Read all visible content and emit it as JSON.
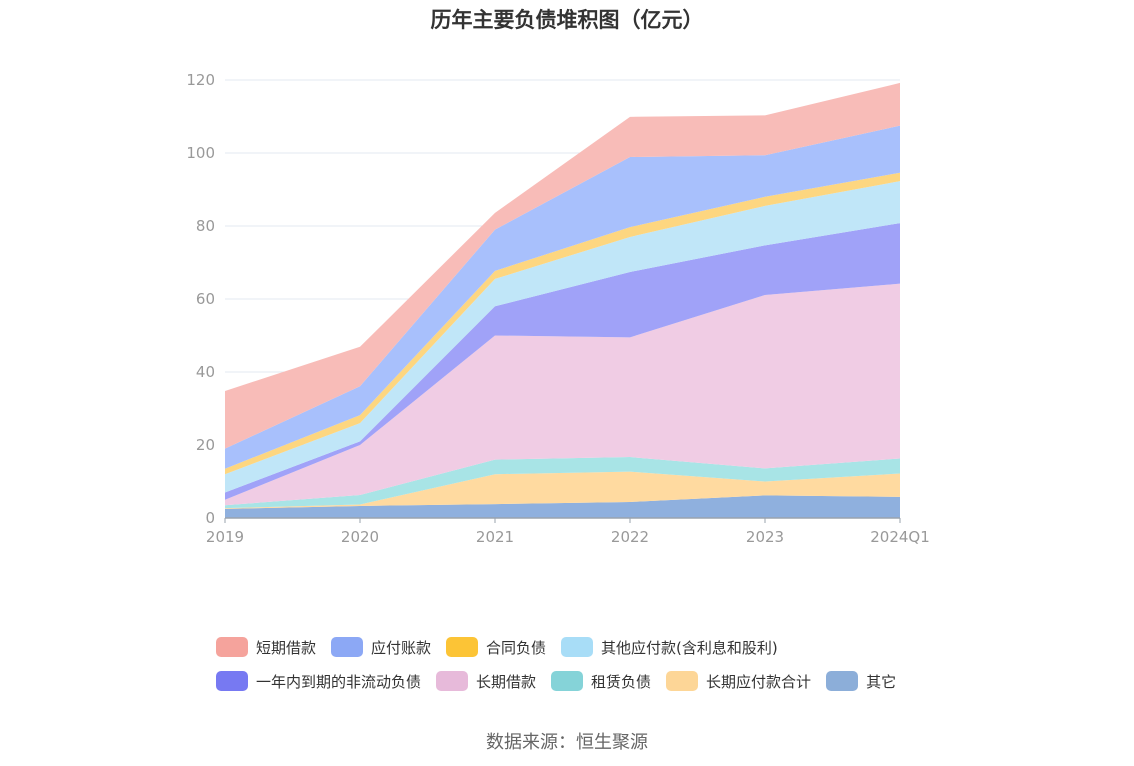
{
  "chart_data": {
    "type": "area",
    "stacked": true,
    "title": "历年主要负债堆积图（亿元）",
    "xlabel": "",
    "ylabel": "",
    "ylim": [
      0,
      120
    ],
    "yticks": [
      0,
      20,
      40,
      60,
      80,
      100,
      120
    ],
    "grid": true,
    "legend_position": "bottom",
    "categories": [
      "2019",
      "2020",
      "2021",
      "2022",
      "2023",
      "2024Q1"
    ],
    "series": [
      {
        "name": "其它",
        "color": "#8FB0DE",
        "values": [
          2.5,
          3.3,
          3.8,
          4.4,
          6.2,
          5.8
        ]
      },
      {
        "name": "长期应付款合计",
        "color": "#FFDAA0",
        "values": [
          0.2,
          0.4,
          8.2,
          8.3,
          3.8,
          6.4
        ]
      },
      {
        "name": "租赁负债",
        "color": "#A8E4E6",
        "values": [
          0.8,
          2.6,
          4.0,
          4.0,
          3.6,
          4.1
        ]
      },
      {
        "name": "长期借款",
        "color": "#F0CCE4",
        "values": [
          1.5,
          13.7,
          34.0,
          32.8,
          47.5,
          47.9
        ]
      },
      {
        "name": "一年内到期的非流动负债",
        "color": "#A0A2F8",
        "values": [
          2.0,
          1.0,
          8.0,
          17.9,
          13.6,
          16.6
        ]
      },
      {
        "name": "其他应付款(含利息和股利)",
        "color": "#C0E6F8",
        "values": [
          5.0,
          5.0,
          7.5,
          9.6,
          10.8,
          11.5
        ]
      },
      {
        "name": "合同负债",
        "color": "#FDD680",
        "values": [
          1.5,
          2.2,
          2.2,
          2.7,
          2.5,
          2.3
        ]
      },
      {
        "name": "应付账款",
        "color": "#A8C0FC",
        "values": [
          5.5,
          7.9,
          11.3,
          19.2,
          11.4,
          12.9
        ]
      },
      {
        "name": "短期借款",
        "color": "#F8BCB8",
        "values": [
          15.8,
          10.8,
          4.6,
          11.0,
          10.9,
          11.7
        ]
      }
    ]
  },
  "legend": {
    "rows": [
      [
        {
          "label": "短期借款",
          "color": "#F5A39C"
        },
        {
          "label": "应付账款",
          "color": "#8CA8F5"
        },
        {
          "label": "合同负债",
          "color": "#FCC436"
        },
        {
          "label": "其他应付款(含利息和股利)",
          "color": "#A8DDF7"
        }
      ],
      [
        {
          "label": "一年内到期的非流动负债",
          "color": "#7779F2"
        },
        {
          "label": "长期借款",
          "color": "#E7BADA"
        },
        {
          "label": "租赁负债",
          "color": "#85D3D8"
        },
        {
          "label": "长期应付款合计",
          "color": "#FDD697"
        },
        {
          "label": "其它",
          "color": "#8CAED9"
        }
      ]
    ]
  },
  "source": "数据来源：恒生聚源"
}
